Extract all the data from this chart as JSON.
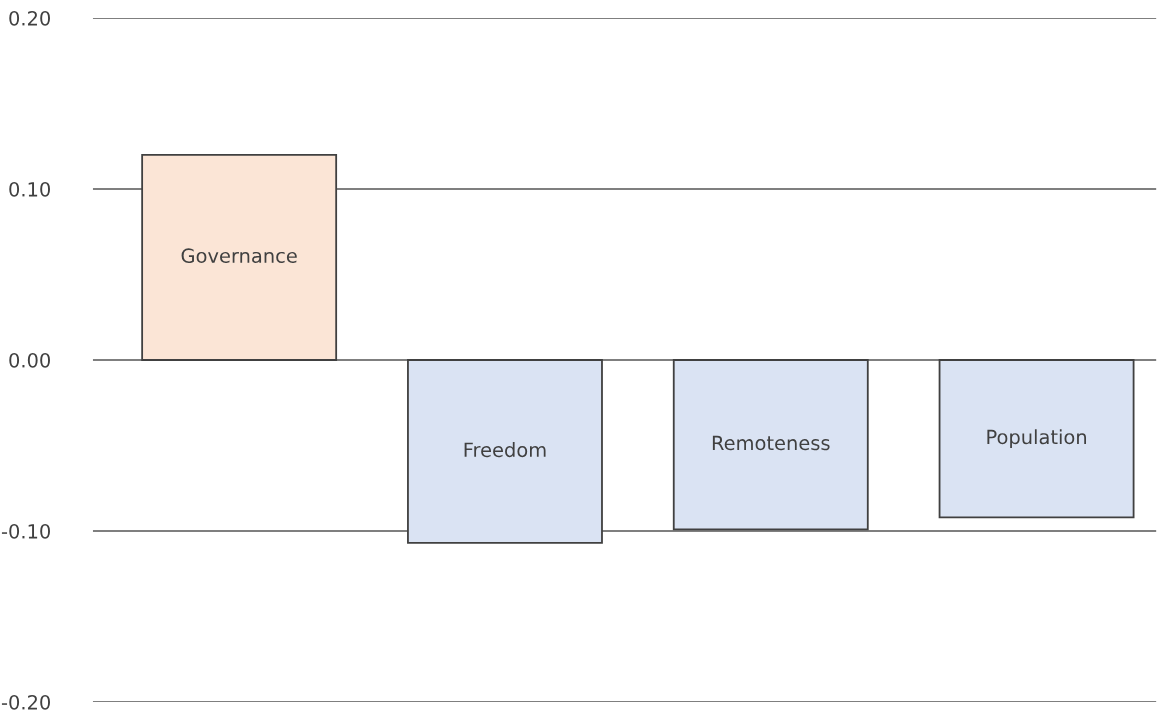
{
  "chart_data": {
    "type": "bar",
    "categories": [
      "Governance",
      "Freedom",
      "Remoteness",
      "Population"
    ],
    "values": [
      0.12,
      -0.107,
      -0.099,
      -0.092
    ],
    "colors": [
      "#fbe5d6",
      "#dae3f3",
      "#dae3f3",
      "#dae3f3"
    ],
    "ylim": [
      -0.2,
      0.2
    ],
    "yticks": [
      {
        "value": -0.2,
        "label": "-0.20"
      },
      {
        "value": -0.1,
        "label": "-0.10"
      },
      {
        "value": 0,
        "label": "0.00"
      },
      {
        "value": 0.1,
        "label": "0.10"
      },
      {
        "value": 0.2,
        "label": "0.20"
      }
    ],
    "grid": "y",
    "tick_labels": "y",
    "legend": false
  }
}
